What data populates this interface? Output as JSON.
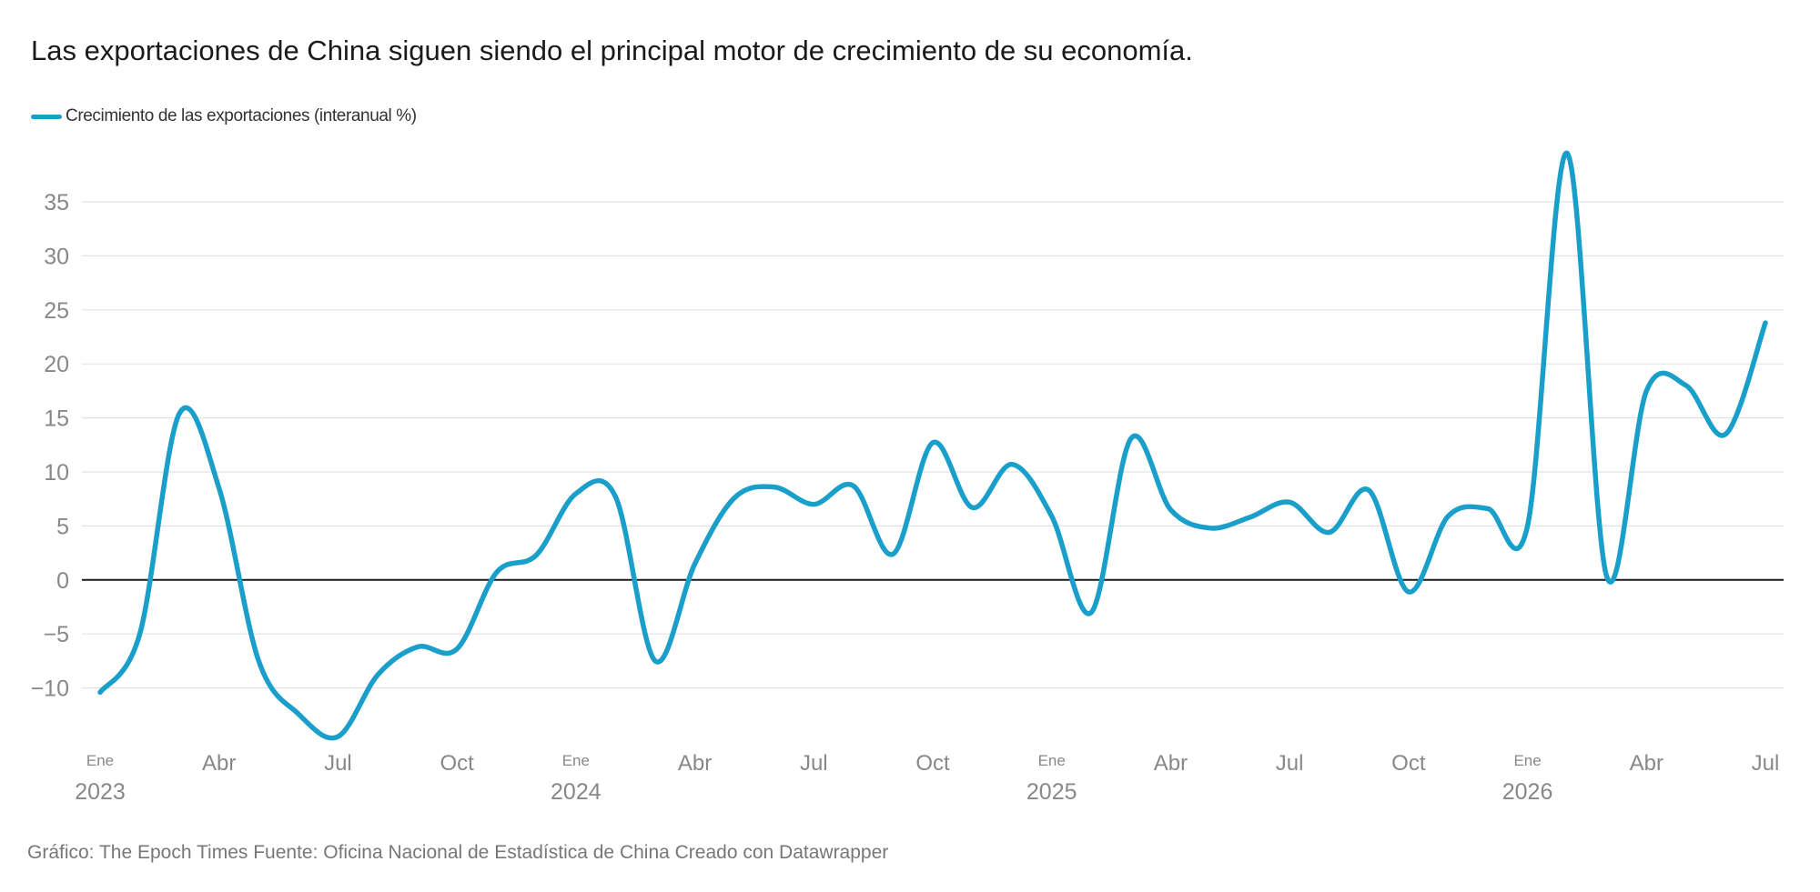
{
  "title": "Las exportaciones de China siguen siendo el principal motor de crecimiento de su economía.",
  "legend": {
    "label": "Crecimiento de las exportaciones (interanual %)"
  },
  "footer": "Gráfico: The Epoch Times Fuente: Oficina Nacional de Estadística de China Creado con Datawrapper",
  "colors": {
    "series": "#1a9fcb",
    "grid": "#e2e2e2",
    "zero_line": "#1a1a1a",
    "axis_text": "#888888"
  },
  "chart_data": {
    "type": "line",
    "title": "Las exportaciones de China siguen siendo el principal motor de crecimiento de su economía.",
    "xlabel": "",
    "ylabel": "",
    "ylim": [
      -15,
      40
    ],
    "y_ticks": [
      -10,
      -5,
      0,
      5,
      10,
      15,
      20,
      25,
      30,
      35
    ],
    "y_tick_labels": [
      "−10",
      "−5",
      "0",
      "5",
      "10",
      "15",
      "20",
      "25",
      "30",
      "35"
    ],
    "grid": true,
    "legend_position": "top-left",
    "x_ticks": [
      {
        "month": "2023-01",
        "label": "Ene",
        "year": "2023"
      },
      {
        "month": "2023-04",
        "label": "Abr"
      },
      {
        "month": "2023-07",
        "label": "Jul"
      },
      {
        "month": "2023-10",
        "label": "Oct"
      },
      {
        "month": "2024-01",
        "label": "Ene",
        "year": "2024"
      },
      {
        "month": "2024-04",
        "label": "Abr"
      },
      {
        "month": "2024-07",
        "label": "Jul"
      },
      {
        "month": "2024-10",
        "label": "Oct"
      },
      {
        "month": "2025-01",
        "label": "Ene",
        "year": "2025"
      },
      {
        "month": "2025-04",
        "label": "Abr"
      },
      {
        "month": "2025-07",
        "label": "Jul"
      },
      {
        "month": "2025-10",
        "label": "Oct"
      },
      {
        "month": "2026-01",
        "label": "Ene",
        "year": "2026"
      },
      {
        "month": "2026-04",
        "label": "Abr"
      },
      {
        "month": "2026-07",
        "label": "Jul"
      }
    ],
    "series": [
      {
        "name": "Crecimiento de las exportaciones (interanual %)",
        "x": [
          "2023-01",
          "2023-02",
          "2023-03",
          "2023-04",
          "2023-05",
          "2023-06",
          "2023-07",
          "2023-08",
          "2023-09",
          "2023-10",
          "2023-11",
          "2023-12",
          "2024-01",
          "2024-02",
          "2024-03",
          "2024-04",
          "2024-05",
          "2024-06",
          "2024-07",
          "2024-08",
          "2024-09",
          "2024-10",
          "2024-11",
          "2024-12",
          "2025-01",
          "2025-02",
          "2025-03",
          "2025-04",
          "2025-05",
          "2025-06",
          "2025-07",
          "2025-08",
          "2025-09",
          "2025-10",
          "2025-11",
          "2025-12",
          "2026-01",
          "2026-02",
          "2026-03",
          "2026-04",
          "2026-05",
          "2026-06",
          "2026-07"
        ],
        "values": [
          -10.4,
          -5.0,
          15.4,
          8.5,
          -7.5,
          -12.4,
          -14.5,
          -8.8,
          -6.2,
          -6.4,
          0.7,
          2.3,
          8.0,
          7.7,
          -7.5,
          1.5,
          7.6,
          8.6,
          7.0,
          8.7,
          2.4,
          12.7,
          6.7,
          10.7,
          5.9,
          -3.0,
          13.1,
          6.5,
          4.8,
          5.8,
          7.2,
          4.4,
          8.3,
          -1.1,
          5.9,
          6.6,
          5.0,
          39.5,
          0.3,
          17.5,
          18.0,
          13.5,
          23.8
        ]
      }
    ]
  }
}
